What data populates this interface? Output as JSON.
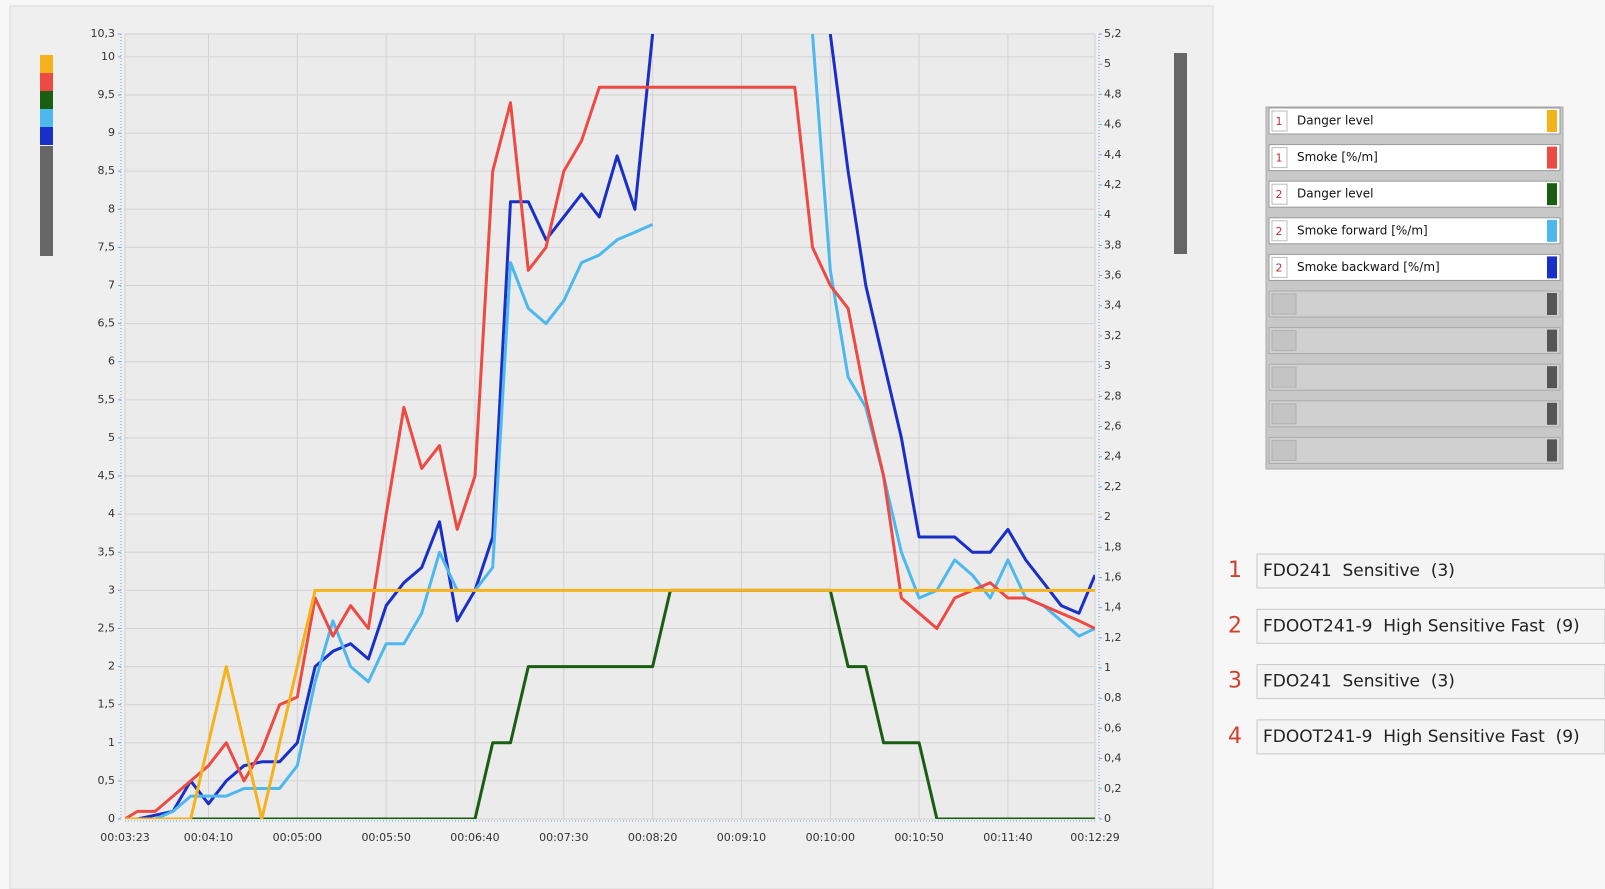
{
  "chart_data": {
    "type": "line",
    "x": [
      "00:03:23",
      "00:03:30",
      "00:03:40",
      "00:03:50",
      "00:04:00",
      "00:04:10",
      "00:04:20",
      "00:04:30",
      "00:04:40",
      "00:04:50",
      "00:05:00",
      "00:05:10",
      "00:05:20",
      "00:05:30",
      "00:05:40",
      "00:05:50",
      "00:06:00",
      "00:06:10",
      "00:06:20",
      "00:06:30",
      "00:06:40",
      "00:06:50",
      "00:07:00",
      "00:07:10",
      "00:07:20",
      "00:07:30",
      "00:07:40",
      "00:07:50",
      "00:08:00",
      "00:08:10",
      "00:08:20",
      "00:08:30",
      "00:08:40",
      "00:08:50",
      "00:09:00",
      "00:09:10",
      "00:09:20",
      "00:09:30",
      "00:09:40",
      "00:09:50",
      "00:10:00",
      "00:10:10",
      "00:10:20",
      "00:10:30",
      "00:10:40",
      "00:10:50",
      "00:11:00",
      "00:11:10",
      "00:11:20",
      "00:11:30",
      "00:11:40",
      "00:11:50",
      "00:12:00",
      "00:12:10",
      "00:12:20",
      "00:12:29"
    ],
    "series": [
      {
        "detector": 1,
        "name": "Danger level",
        "color": "#f5b21c",
        "values": [
          0,
          0,
          0,
          0,
          0,
          1,
          2,
          1,
          0,
          1,
          2,
          3,
          3,
          3,
          3,
          3,
          3,
          3,
          3,
          3,
          3,
          3,
          3,
          3,
          3,
          3,
          3,
          3,
          3,
          3,
          3,
          3,
          3,
          3,
          3,
          3,
          3,
          3,
          3,
          3,
          3,
          3,
          3,
          3,
          3,
          3,
          3,
          3,
          3,
          3,
          3,
          3,
          3,
          3,
          3,
          3
        ]
      },
      {
        "detector": 1,
        "name": "Smoke [%/m]",
        "color": "#ee4a44",
        "values": [
          0,
          0.1,
          0.1,
          0.3,
          0.5,
          0.7,
          1.0,
          0.5,
          0.9,
          1.5,
          1.6,
          2.9,
          2.4,
          2.8,
          2.5,
          4.0,
          5.4,
          4.6,
          4.9,
          3.8,
          4.5,
          8.5,
          9.4,
          7.2,
          7.5,
          8.5,
          8.9,
          9.6,
          9.6,
          9.6,
          9.6,
          9.6,
          9.6,
          9.6,
          9.6,
          9.6,
          9.6,
          9.6,
          9.6,
          7.5,
          7.0,
          6.7,
          5.5,
          4.5,
          2.9,
          2.7,
          2.5,
          2.9,
          3.0,
          3.1,
          2.9,
          2.9,
          2.8,
          2.7,
          2.6,
          2.5
        ]
      },
      {
        "detector": 2,
        "name": "Danger level",
        "color": "#1a5e12",
        "values": [
          0,
          0,
          0,
          0,
          0,
          0,
          0,
          0,
          0,
          0,
          0,
          0,
          0,
          0,
          0,
          0,
          0,
          0,
          0,
          0,
          0,
          1,
          1,
          2,
          2,
          2,
          2,
          2,
          2,
          2,
          2,
          3,
          3,
          3,
          3,
          3,
          3,
          3,
          3,
          3,
          3,
          2,
          2,
          1,
          1,
          1,
          0,
          0,
          0,
          0,
          0,
          0,
          0,
          0,
          0,
          0
        ]
      },
      {
        "detector": 2,
        "name": "Smoke forward [%/m]",
        "color": "#4db8ee",
        "values": [
          0,
          0,
          0,
          0.1,
          0.3,
          0.3,
          0.3,
          0.4,
          0.4,
          0.4,
          0.7,
          1.8,
          2.6,
          2.0,
          1.8,
          2.3,
          2.3,
          2.7,
          3.5,
          3.0,
          3.0,
          3.3,
          7.3,
          6.7,
          6.5,
          6.8,
          7.3,
          7.4,
          7.6,
          7.7,
          7.8,
          null,
          null,
          null,
          null,
          null,
          null,
          null,
          null,
          10.3,
          7.2,
          5.8,
          5.4,
          4.5,
          3.5,
          2.9,
          3.0,
          3.4,
          3.2,
          2.9,
          3.4,
          2.9,
          2.8,
          2.6,
          2.4,
          2.5
        ]
      },
      {
        "detector": 2,
        "name": "Smoke backward [%/m]",
        "color": "#1a2fc8",
        "values": [
          0,
          0,
          0.05,
          0.1,
          0.5,
          0.2,
          0.5,
          0.7,
          0.75,
          0.75,
          1.0,
          2.0,
          2.2,
          2.3,
          2.1,
          2.8,
          3.1,
          3.3,
          3.9,
          2.6,
          3.0,
          3.7,
          8.1,
          8.1,
          7.6,
          7.9,
          8.2,
          7.9,
          8.7,
          8.0,
          10.3,
          null,
          null,
          null,
          null,
          null,
          null,
          null,
          null,
          null,
          10.3,
          8.5,
          7.0,
          6.0,
          5.0,
          3.7,
          3.7,
          3.7,
          3.5,
          3.5,
          3.8,
          3.4,
          3.1,
          2.8,
          2.7,
          3.2
        ]
      }
    ],
    "xlim": [
      "00:03:23",
      "00:12:29"
    ],
    "xticks": [
      "00:03:23",
      "00:04:10",
      "00:05:00",
      "00:05:50",
      "00:06:40",
      "00:07:30",
      "00:08:20",
      "00:09:10",
      "00:10:00",
      "00:10:50",
      "00:11:40",
      "00:12:29"
    ],
    "ylim": [
      0,
      10.3
    ],
    "yticks": [
      0,
      {
        "value": 0.5,
        "label": "0,5"
      },
      1,
      {
        "value": 1.5,
        "label": "1,5"
      },
      2,
      {
        "value": 2.5,
        "label": "2,5"
      },
      3,
      {
        "value": 3.5,
        "label": "3,5"
      },
      4,
      {
        "value": 4.5,
        "label": "4,5"
      },
      5,
      {
        "value": 5.5,
        "label": "5,5"
      },
      6,
      {
        "value": 6.5,
        "label": "6,5"
      },
      7,
      {
        "value": 7.5,
        "label": "7,5"
      },
      8,
      {
        "value": 8.5,
        "label": "8,5"
      },
      9,
      {
        "value": 9.5,
        "label": "9,5"
      },
      10,
      {
        "value": 10.3,
        "label": "10,3"
      }
    ],
    "y2lim": [
      0,
      5.2
    ],
    "y2ticks": [
      0,
      {
        "value": 0.2,
        "label": "0,2"
      },
      {
        "value": 0.4,
        "label": "0,4"
      },
      {
        "value": 0.6,
        "label": "0,6"
      },
      {
        "value": 0.8,
        "label": "0,8"
      },
      1,
      {
        "value": 1.2,
        "label": "1,2"
      },
      {
        "value": 1.4,
        "label": "1,4"
      },
      {
        "value": 1.6,
        "label": "1,6"
      },
      {
        "value": 1.8,
        "label": "1,8"
      },
      2,
      {
        "value": 2.2,
        "label": "2,2"
      },
      {
        "value": 2.4,
        "label": "2,4"
      },
      {
        "value": 2.6,
        "label": "2,6"
      },
      {
        "value": 2.8,
        "label": "2,8"
      },
      3,
      {
        "value": 3.2,
        "label": "3,2"
      },
      {
        "value": 3.4,
        "label": "3,4"
      },
      {
        "value": 3.6,
        "label": "3,6"
      },
      {
        "value": 3.8,
        "label": "3,8"
      },
      4,
      {
        "value": 4.2,
        "label": "4,2"
      },
      {
        "value": 4.4,
        "label": "4,4"
      },
      {
        "value": 4.6,
        "label": "4,6"
      },
      {
        "value": 4.8,
        "label": "4,8"
      },
      5,
      {
        "value": 5.2,
        "label": "5,2"
      }
    ],
    "grid": true
  },
  "detectors": [
    {
      "number": 1,
      "label": "FDO241  Sensitive  (3)"
    },
    {
      "number": 2,
      "label": "FDOOT241-9  High Sensitive Fast  (9)"
    },
    {
      "number": 3,
      "label": "FDO241  Sensitive  (3)"
    },
    {
      "number": 4,
      "label": "FDOOT241-9  High Sensitive Fast  (9)"
    }
  ]
}
